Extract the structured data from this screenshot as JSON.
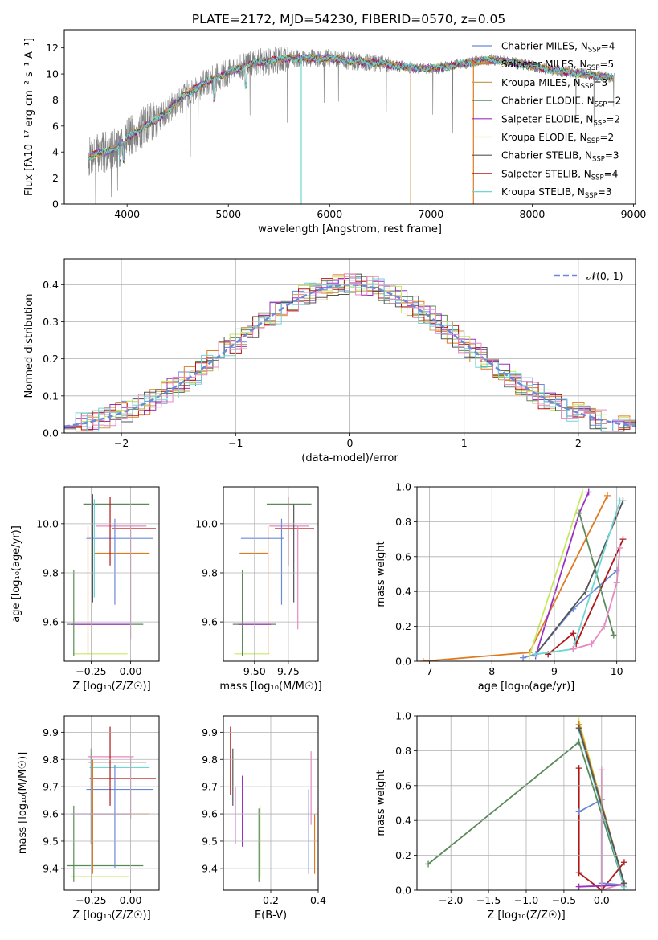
{
  "figure_title": "PLATE=2172, MJD=54230, FIBERID=0570, z=0.05",
  "colors": {
    "c0": "#6a8ad8",
    "c1": "#e07a20",
    "c2": "#c8a050",
    "c3": "#5a8a5a",
    "c4": "#9b30c0",
    "c5": "#c8e860",
    "c6": "#555555",
    "c7": "#b01818",
    "c8": "#6fd6d6",
    "c9": "#e888c0",
    "data": "#808080"
  },
  "chart_data": [
    {
      "id": "spectrum",
      "type": "line",
      "title": "",
      "xlabel": "wavelength [Angstrom, rest frame]",
      "ylabel": "Flux [fλ10⁻¹⁷ erg cm⁻² s⁻¹ A⁻¹]",
      "xlim": [
        3380,
        9020
      ],
      "ylim": [
        0,
        13.4
      ],
      "xticks": [
        "4000",
        "5000",
        "6000",
        "7000",
        "8000",
        "9000"
      ],
      "yticks": [
        "0",
        "2",
        "4",
        "6",
        "8",
        "10",
        "12"
      ],
      "grid": false,
      "legend_position": "right",
      "legend": [
        {
          "label": "Chabrier MILES, N",
          "sub": "SSP",
          "suffix": "=4",
          "color": "c0"
        },
        {
          "label": "Salpeter MILES, N",
          "sub": "SSP",
          "suffix": "=5",
          "color": "c1"
        },
        {
          "label": "Kroupa MILES, N",
          "sub": "SSP",
          "suffix": "=3",
          "color": "c2"
        },
        {
          "label": "Chabrier ELODIE, N",
          "sub": "SSP",
          "suffix": "=2",
          "color": "c3"
        },
        {
          "label": "Salpeter ELODIE, N",
          "sub": "SSP",
          "suffix": "=2",
          "color": "c4"
        },
        {
          "label": "Kroupa ELODIE, N",
          "sub": "SSP",
          "suffix": "=2",
          "color": "c5"
        },
        {
          "label": "Chabrier STELIB, N",
          "sub": "SSP",
          "suffix": "=3",
          "color": "c6"
        },
        {
          "label": "Salpeter STELIB, N",
          "sub": "SSP",
          "suffix": "=4",
          "color": "c7"
        },
        {
          "label": "Kroupa STELIB, N",
          "sub": "SSP",
          "suffix": "=3",
          "color": "c8"
        }
      ],
      "continuum_x": [
        3620,
        3700,
        3800,
        3900,
        4000,
        4100,
        4200,
        4300,
        4400,
        4500,
        4600,
        4700,
        4800,
        4900,
        5000,
        5100,
        5200,
        5300,
        5400,
        5500,
        5600,
        5800,
        6000,
        6200,
        6400,
        6600,
        6800,
        7000,
        7200,
        7400,
        7600,
        7800,
        8000,
        8200,
        8400,
        8600,
        8800
      ],
      "continuum_y": [
        3.6,
        3.9,
        4.0,
        4.4,
        5.1,
        5.6,
        6.1,
        6.5,
        7.2,
        7.9,
        8.5,
        9.0,
        9.4,
        9.8,
        10.1,
        10.4,
        10.7,
        10.9,
        11.0,
        11.1,
        11.2,
        11.2,
        11.2,
        11.0,
        10.9,
        10.7,
        10.5,
        10.4,
        10.6,
        10.9,
        11.1,
        10.9,
        10.6,
        10.3,
        10.1,
        9.9,
        9.7
      ],
      "spikes": [
        {
          "x": 5720,
          "ymin": 0,
          "color": "c8"
        },
        {
          "x": 6800,
          "ymin": 0,
          "color": "c2"
        },
        {
          "x": 7420,
          "ymin": 0,
          "color": "c1"
        }
      ]
    },
    {
      "id": "residual_hist",
      "type": "histogram",
      "xlabel": "(data-model)/error",
      "ylabel": "Normed distribution",
      "xlim": [
        -2.5,
        2.5
      ],
      "ylim": [
        0,
        0.47
      ],
      "xticks": [
        "−2",
        "−1",
        "0",
        "1",
        "2"
      ],
      "yticks": [
        "0.0",
        "0.1",
        "0.2",
        "0.3",
        "0.4"
      ],
      "grid": true,
      "legend_position": "top-right",
      "reference_label": "𝒩(0, 1)",
      "bin_width": 0.1,
      "amplitude": 0.4
    },
    {
      "id": "age_vs_Z",
      "type": "errorbar",
      "xlabel": "Z [log₁₀(Z/Z☉)]",
      "ylabel": "age  [log₁₀(age/yr)]",
      "xlim": [
        -0.42,
        0.18
      ],
      "ylim": [
        9.44,
        10.15
      ],
      "xticks": [
        "−0.25",
        "0.00"
      ],
      "xtick_values": [
        -0.25,
        0.0
      ],
      "yticks": [
        "9.6",
        "9.8",
        "10.0"
      ],
      "ytick_values": [
        9.6,
        9.8,
        10.0
      ],
      "grid": true,
      "hbars": [
        {
          "y": 10.08,
          "x0": -0.3,
          "x1": 0.12,
          "color": "c3"
        },
        {
          "y": 9.99,
          "x0": -0.22,
          "x1": 0.1,
          "color": "c9"
        },
        {
          "y": 9.98,
          "x0": -0.12,
          "x1": 0.16,
          "color": "c7"
        },
        {
          "y": 9.94,
          "x0": -0.28,
          "x1": 0.14,
          "color": "c0"
        },
        {
          "y": 9.88,
          "x0": -0.23,
          "x1": 0.12,
          "color": "c1"
        },
        {
          "y": 9.59,
          "x0": -0.4,
          "x1": 0.08,
          "color": "c3"
        },
        {
          "y": 9.59,
          "x0": -0.38,
          "x1": 0.0,
          "color": "c4"
        },
        {
          "y": 9.47,
          "x0": -0.36,
          "x1": -0.02,
          "color": "c5"
        }
      ],
      "vbars": [
        {
          "x": -0.36,
          "y0": 9.46,
          "y1": 9.81,
          "color": "c3"
        },
        {
          "x": -0.27,
          "y0": 9.47,
          "y1": 9.99,
          "color": "c1"
        },
        {
          "x": -0.24,
          "y0": 9.68,
          "y1": 10.12,
          "color": "c6"
        },
        {
          "x": -0.23,
          "y0": 9.7,
          "y1": 10.1,
          "color": "c8"
        },
        {
          "x": -0.13,
          "y0": 9.83,
          "y1": 10.11,
          "color": "c7"
        },
        {
          "x": -0.1,
          "y0": 9.67,
          "y1": 10.02,
          "color": "c0"
        },
        {
          "x": 0.0,
          "y0": 9.53,
          "y1": 9.99,
          "color": "c9"
        }
      ]
    },
    {
      "id": "age_vs_mass",
      "type": "errorbar",
      "xlabel": "mass [log₁₀(M/M☉)]",
      "ylabel": "",
      "xlim": [
        9.27,
        9.97
      ],
      "ylim": [
        9.44,
        10.15
      ],
      "xticks": [
        "9.50",
        "9.75"
      ],
      "xtick_values": [
        9.5,
        9.75
      ],
      "yticks": [
        "9.6",
        "9.8",
        "10.0"
      ],
      "ytick_values": [
        9.6,
        9.8,
        10.0
      ],
      "grid": true,
      "hbars": [
        {
          "y": 10.08,
          "x0": 9.59,
          "x1": 9.92,
          "color": "c3"
        },
        {
          "y": 9.99,
          "x0": 9.61,
          "x1": 9.9,
          "color": "c9"
        },
        {
          "y": 9.98,
          "x0": 9.65,
          "x1": 9.94,
          "color": "c7"
        },
        {
          "y": 9.94,
          "x0": 9.4,
          "x1": 9.72,
          "color": "c0"
        },
        {
          "y": 9.88,
          "x0": 9.39,
          "x1": 9.6,
          "color": "c1"
        },
        {
          "y": 9.59,
          "x0": 9.34,
          "x1": 9.66,
          "color": "c3"
        },
        {
          "y": 9.59,
          "x0": 9.38,
          "x1": 9.62,
          "color": "c4"
        },
        {
          "y": 9.47,
          "x0": 9.35,
          "x1": 9.61,
          "color": "c5"
        }
      ],
      "vbars": [
        {
          "x": 9.41,
          "y0": 9.46,
          "y1": 9.81,
          "color": "c3"
        },
        {
          "x": 9.6,
          "y0": 9.47,
          "y1": 9.99,
          "color": "c1"
        },
        {
          "x": 9.7,
          "y0": 9.67,
          "y1": 10.02,
          "color": "c0"
        },
        {
          "x": 9.75,
          "y0": 9.83,
          "y1": 10.11,
          "color": "c7"
        },
        {
          "x": 9.79,
          "y0": 9.68,
          "y1": 10.08,
          "color": "c6"
        },
        {
          "x": 9.82,
          "y0": 9.57,
          "y1": 9.99,
          "color": "c9"
        }
      ]
    },
    {
      "id": "weight_vs_age",
      "type": "line",
      "xlabel": "age  [log₁₀(age/yr)]",
      "ylabel": "mass weight",
      "xlim": [
        6.8,
        10.3
      ],
      "ylim": [
        0,
        1
      ],
      "xticks": [
        "7",
        "8",
        "9",
        "10"
      ],
      "xtick_values": [
        7,
        8,
        9,
        10
      ],
      "yticks": [
        "0.0",
        "0.2",
        "0.4",
        "0.6",
        "0.8",
        "1.0"
      ],
      "ytick_values": [
        0,
        0.2,
        0.4,
        0.6,
        0.8,
        1.0
      ],
      "grid": true,
      "series": [
        {
          "color": "c1",
          "points": [
            [
              6.9,
              0.0
            ],
            [
              8.6,
              0.05
            ],
            [
              9.85,
              0.95
            ]
          ]
        },
        {
          "color": "c0",
          "points": [
            [
              8.5,
              0.02
            ],
            [
              8.7,
              0.04
            ],
            [
              9.3,
              0.3
            ],
            [
              10.0,
              0.52
            ]
          ]
        },
        {
          "color": "c6",
          "points": [
            [
              8.7,
              0.04
            ],
            [
              9.5,
              0.4
            ],
            [
              10.1,
              0.92
            ]
          ]
        },
        {
          "color": "c5",
          "points": [
            [
              8.6,
              0.03
            ],
            [
              9.45,
              0.97
            ]
          ]
        },
        {
          "color": "c4",
          "points": [
            [
              8.7,
              0.03
            ],
            [
              9.4,
              0.85
            ],
            [
              9.55,
              0.97
            ]
          ]
        },
        {
          "color": "c7",
          "points": [
            [
              8.9,
              0.04
            ],
            [
              9.3,
              0.16
            ],
            [
              9.35,
              0.1
            ],
            [
              10.1,
              0.7
            ]
          ]
        },
        {
          "color": "c3",
          "points": [
            [
              9.4,
              0.85
            ],
            [
              9.95,
              0.15
            ]
          ]
        },
        {
          "color": "c8",
          "points": [
            [
              8.7,
              0.04
            ],
            [
              9.3,
              0.07
            ],
            [
              10.05,
              0.92
            ]
          ]
        },
        {
          "color": "c9",
          "points": [
            [
              9.3,
              0.07
            ],
            [
              9.6,
              0.1
            ],
            [
              9.8,
              0.2
            ],
            [
              10.0,
              0.45
            ],
            [
              10.05,
              0.65
            ]
          ]
        }
      ]
    },
    {
      "id": "mass_vs_Z",
      "type": "errorbar",
      "xlabel": "Z [log₁₀(Z/Z☉)]",
      "ylabel": "mass [log₁₀(M/M☉)]",
      "xlim": [
        -0.42,
        0.18
      ],
      "ylim": [
        9.32,
        9.96
      ],
      "xticks": [
        "−0.25",
        "0.00"
      ],
      "xtick_values": [
        -0.25,
        0.0
      ],
      "yticks": [
        "9.4",
        "9.5",
        "9.6",
        "9.7",
        "9.8",
        "9.9"
      ],
      "ytick_values": [
        9.4,
        9.5,
        9.6,
        9.7,
        9.8,
        9.9
      ],
      "grid": true,
      "hbars": [
        {
          "y": 9.81,
          "x0": -0.27,
          "x1": 0.02,
          "color": "c9"
        },
        {
          "y": 9.79,
          "x0": -0.27,
          "x1": 0.1,
          "color": "c6"
        },
        {
          "y": 9.77,
          "x0": -0.26,
          "x1": 0.12,
          "color": "c8"
        },
        {
          "y": 9.73,
          "x0": -0.26,
          "x1": 0.16,
          "color": "c7"
        },
        {
          "y": 9.69,
          "x0": -0.28,
          "x1": 0.14,
          "color": "c0"
        },
        {
          "y": 9.6,
          "x0": -0.26,
          "x1": 0.12,
          "color": "c1"
        },
        {
          "y": 9.6,
          "x0": -0.38,
          "x1": 0.0,
          "color": "c4"
        },
        {
          "y": 9.41,
          "x0": -0.4,
          "x1": 0.08,
          "color": "c3"
        },
        {
          "y": 9.37,
          "x0": -0.38,
          "x1": -0.01,
          "color": "c5"
        }
      ],
      "vbars": [
        {
          "x": -0.36,
          "y0": 9.35,
          "y1": 9.63,
          "color": "c3"
        },
        {
          "x": -0.25,
          "y0": 9.49,
          "y1": 9.84,
          "color": "c6"
        },
        {
          "x": -0.24,
          "y0": 9.38,
          "y1": 9.8,
          "color": "c1"
        },
        {
          "x": -0.13,
          "y0": 9.63,
          "y1": 9.92,
          "color": "c7"
        },
        {
          "x": -0.1,
          "y0": 9.4,
          "y1": 9.78,
          "color": "c0"
        },
        {
          "x": 0.0,
          "y0": 9.58,
          "y1": 9.81,
          "color": "c9"
        }
      ]
    },
    {
      "id": "mass_vs_ebv",
      "type": "errorbar",
      "xlabel": "E(B-V)",
      "ylabel": "",
      "xlim": [
        0.0,
        0.4
      ],
      "ylim": [
        9.32,
        9.96
      ],
      "xticks": [
        "0.2",
        "0.4"
      ],
      "xtick_values": [
        0.2,
        0.4
      ],
      "yticks": [
        "9.4",
        "9.5",
        "9.6",
        "9.7",
        "9.8",
        "9.9"
      ],
      "ytick_values": [
        9.4,
        9.5,
        9.6,
        9.7,
        9.8,
        9.9
      ],
      "grid": true,
      "hbars": [],
      "vbars": [
        {
          "x": 0.03,
          "y0": 9.67,
          "y1": 9.92,
          "color": "c7"
        },
        {
          "x": 0.04,
          "y0": 9.63,
          "y1": 9.84,
          "color": "c6"
        },
        {
          "x": 0.05,
          "y0": 9.49,
          "y1": 9.7,
          "color": "c4"
        },
        {
          "x": 0.08,
          "y0": 9.48,
          "y1": 9.74,
          "color": "c4"
        },
        {
          "x": 0.15,
          "y0": 9.35,
          "y1": 9.62,
          "color": "c3"
        },
        {
          "x": 0.155,
          "y0": 9.37,
          "y1": 9.63,
          "color": "c5"
        },
        {
          "x": 0.36,
          "y0": 9.38,
          "y1": 9.69,
          "color": "c0"
        },
        {
          "x": 0.37,
          "y0": 9.56,
          "y1": 9.83,
          "color": "c9"
        },
        {
          "x": 0.385,
          "y0": 9.38,
          "y1": 9.6,
          "color": "c1"
        }
      ]
    },
    {
      "id": "weight_vs_Z",
      "type": "line",
      "xlabel": "Z [log₁₀(Z/Z☉)]",
      "ylabel": "mass weight",
      "xlim": [
        -2.45,
        0.45
      ],
      "ylim": [
        0,
        1
      ],
      "xticks": [
        "−2.0",
        "−1.5",
        "−1.0",
        "−0.5",
        "0.0"
      ],
      "xtick_values": [
        -2.0,
        -1.5,
        -1.0,
        -0.5,
        0.0
      ],
      "yticks": [
        "0.0",
        "0.2",
        "0.4",
        "0.6",
        "0.8",
        "1.0"
      ],
      "ytick_values": [
        0,
        0.2,
        0.4,
        0.6,
        0.8,
        1.0
      ],
      "grid": true,
      "series": [
        {
          "color": "c3",
          "points": [
            [
              -2.3,
              0.15
            ],
            [
              -0.3,
              0.85
            ],
            [
              0.3,
              0.02
            ]
          ]
        },
        {
          "color": "c7",
          "points": [
            [
              -0.3,
              0.7
            ],
            [
              -0.3,
              0.1
            ],
            [
              0.0,
              0.0
            ],
            [
              0.3,
              0.16
            ]
          ]
        },
        {
          "color": "c0",
          "points": [
            [
              -0.3,
              0.45
            ],
            [
              0.0,
              0.52
            ],
            [
              0.0,
              0.04
            ],
            [
              0.3,
              0.03
            ]
          ]
        },
        {
          "color": "c9",
          "points": [
            [
              0.0,
              0.69
            ],
            [
              0.0,
              0.0
            ],
            [
              0.3,
              0.04
            ]
          ]
        },
        {
          "color": "c4",
          "points": [
            [
              -0.3,
              0.02
            ],
            [
              0.3,
              0.03
            ]
          ]
        },
        {
          "color": "c5",
          "points": [
            [
              -0.3,
              0.97
            ],
            [
              0.3,
              0.03
            ]
          ]
        },
        {
          "color": "c1",
          "points": [
            [
              -0.3,
              0.95
            ],
            [
              0.3,
              0.04
            ]
          ]
        },
        {
          "color": "c8",
          "points": [
            [
              -0.3,
              0.92
            ],
            [
              0.3,
              0.02
            ]
          ]
        },
        {
          "color": "c6",
          "points": [
            [
              -0.3,
              0.93
            ],
            [
              0.3,
              0.04
            ]
          ]
        }
      ]
    }
  ]
}
